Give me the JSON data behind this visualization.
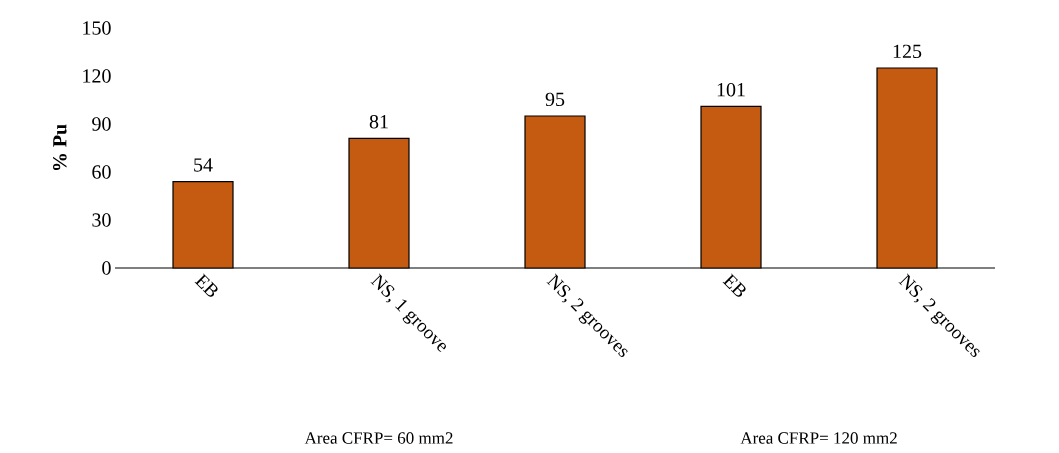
{
  "chart_data": {
    "type": "bar",
    "ylabel": "% Pu",
    "categories": [
      "EB",
      "NS, 1 groove",
      "NS, 2 grooves",
      "EB",
      "NS, 2 grooves"
    ],
    "values": [
      54,
      81,
      95,
      101,
      125
    ],
    "color": "#c55a11",
    "ylim": [
      0,
      150
    ],
    "yticks": [
      0,
      30,
      60,
      90,
      120,
      150
    ],
    "data_labels": true,
    "annotations": [
      "Area CFRP= 60 mm2",
      "Area CFRP= 120 mm2"
    ]
  }
}
